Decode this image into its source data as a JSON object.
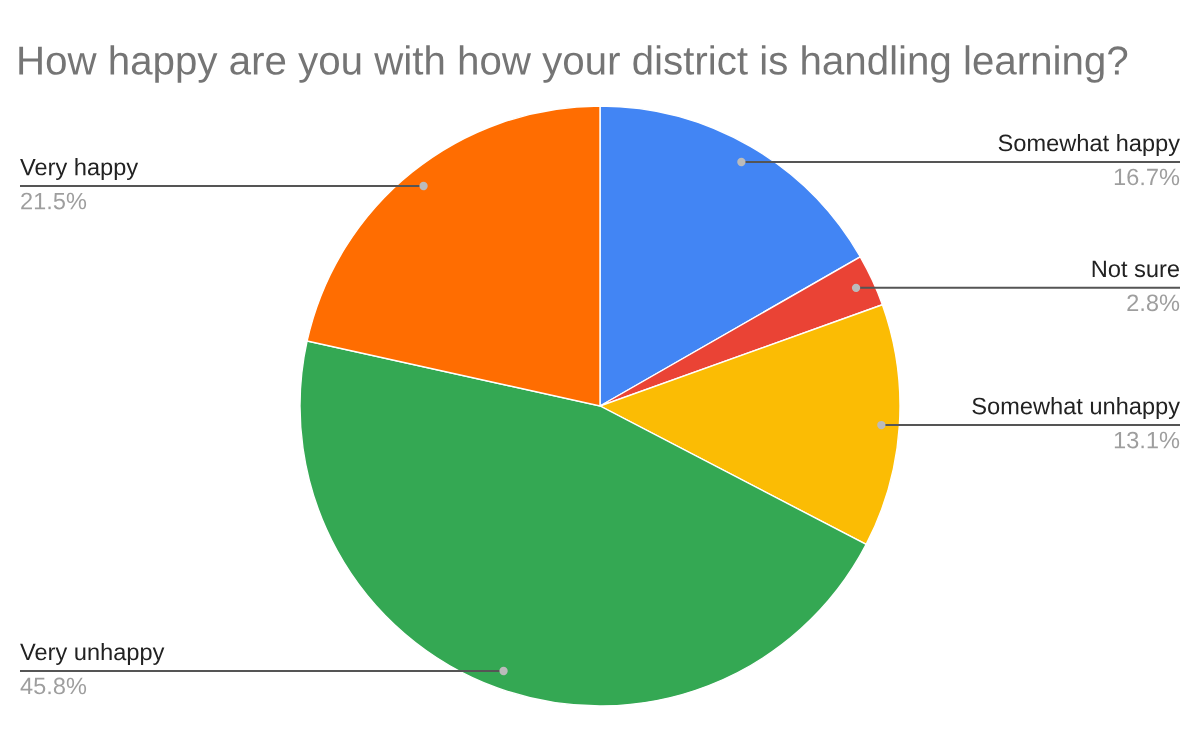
{
  "chart_data": {
    "type": "pie",
    "title": "How happy are you with how your district is handling learning?",
    "categories": [
      "Somewhat happy",
      "Not sure",
      "Somewhat unhappy",
      "Very unhappy",
      "Very happy"
    ],
    "values": [
      16.7,
      2.8,
      13.1,
      45.8,
      21.5
    ],
    "value_labels": [
      "16.7%",
      "2.8%",
      "13.1%",
      "45.8%",
      "21.5%"
    ],
    "colors": [
      "#4285f4",
      "#ea4335",
      "#fbbc04",
      "#34a853",
      "#ff6d01"
    ],
    "legend": false
  }
}
